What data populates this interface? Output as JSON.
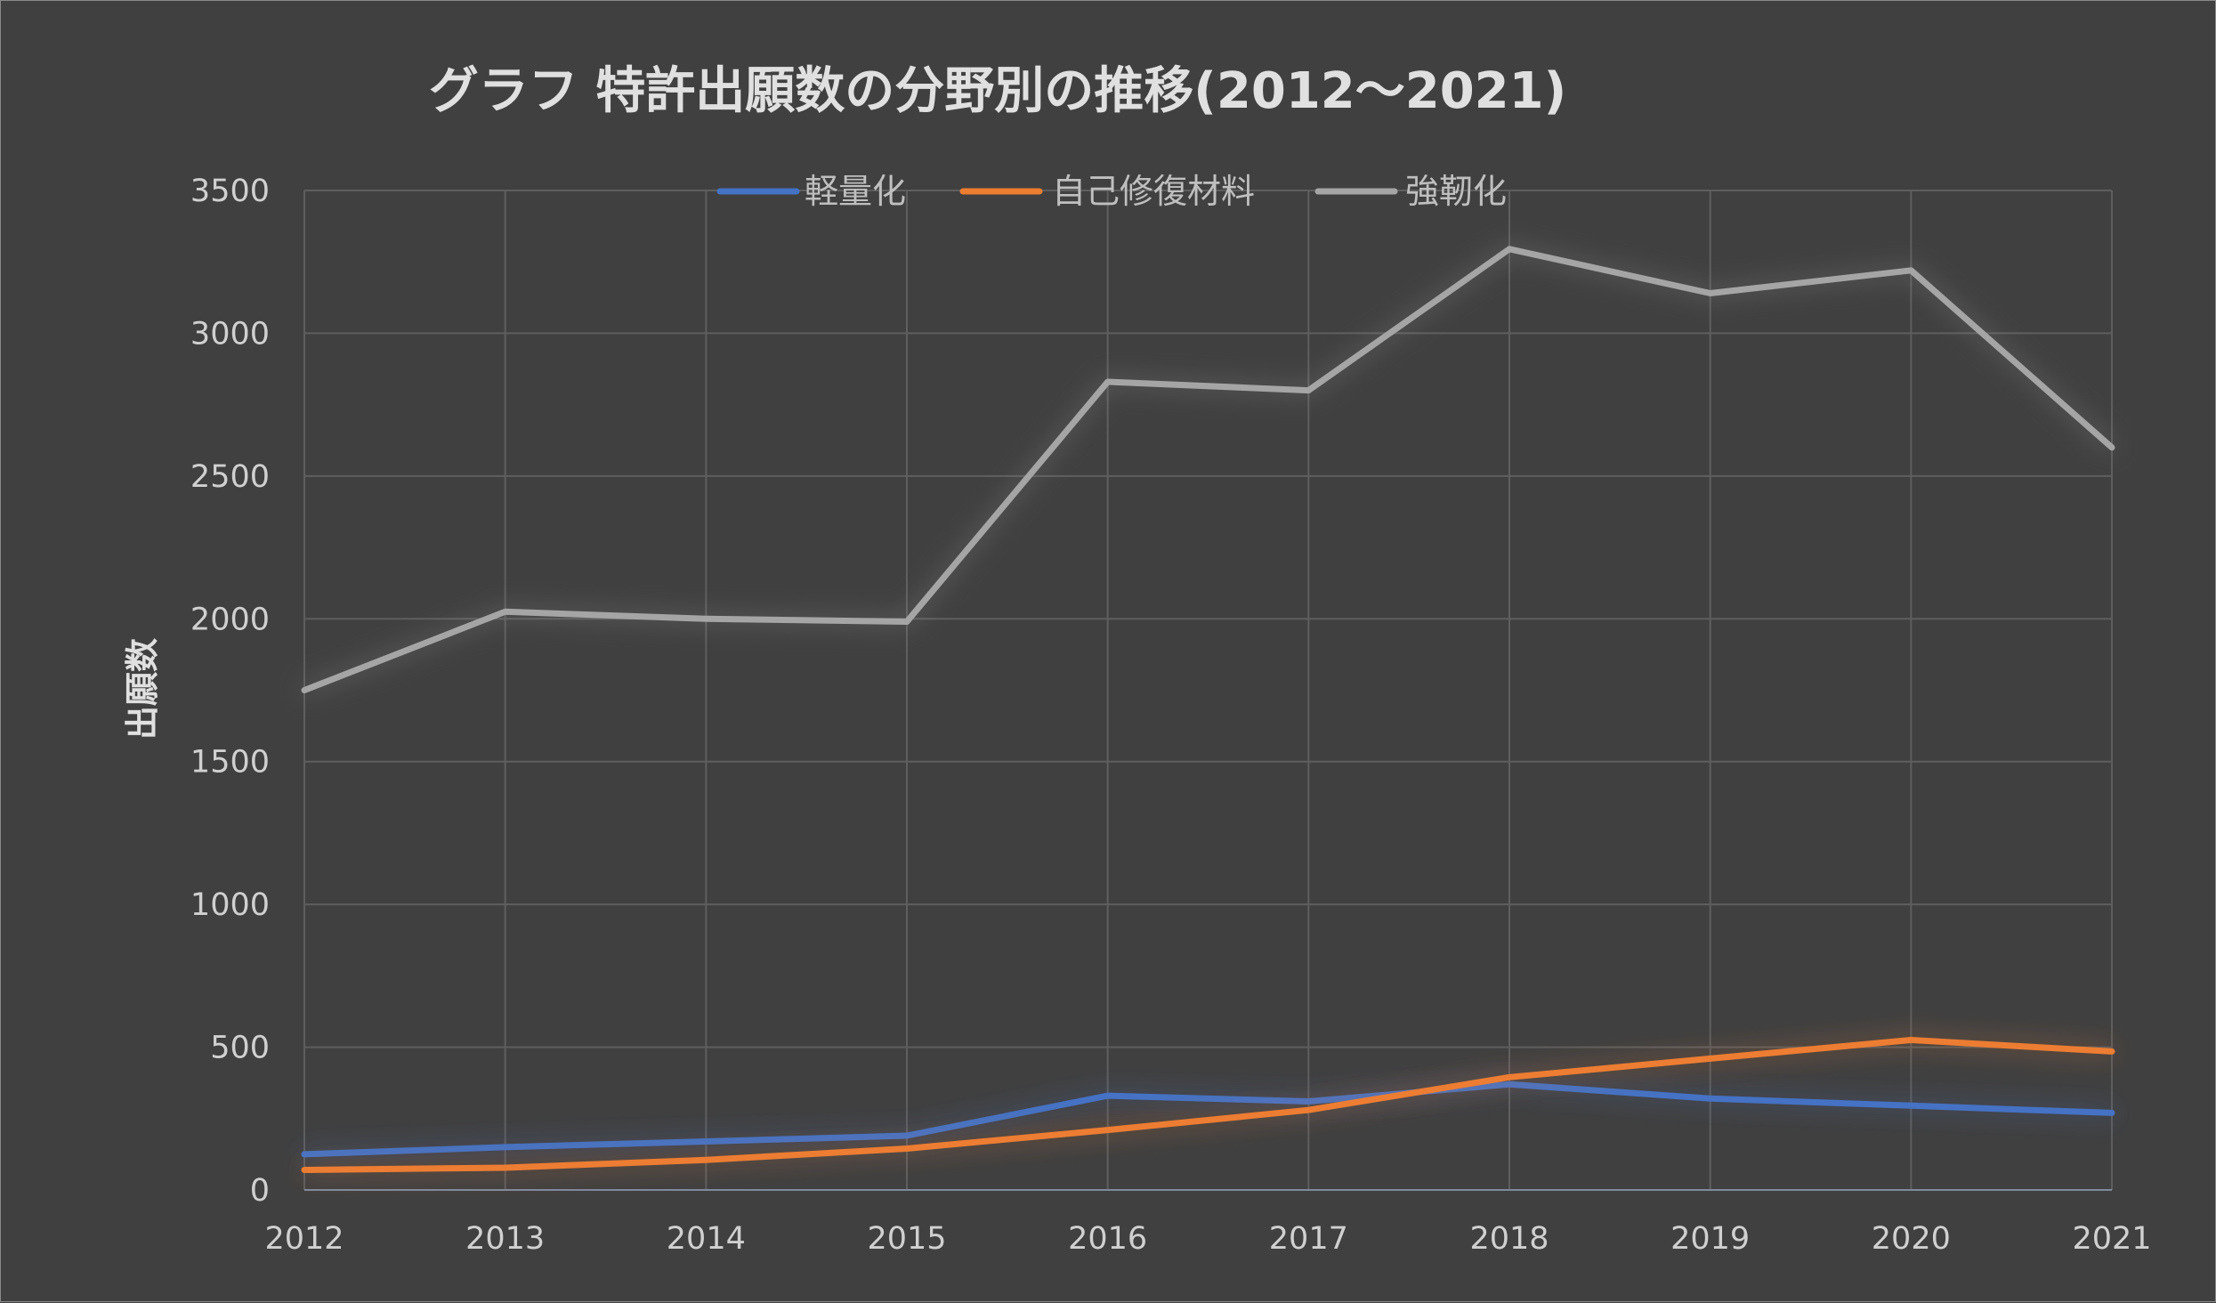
{
  "chart_data": {
    "type": "line",
    "title": "グラフ 特許出願数の分野別の推移(2012～2021)",
    "xlabel": "",
    "ylabel": "出願数",
    "ylim": [
      0,
      3500
    ],
    "yticks": [
      "0",
      "500",
      "1000",
      "1500",
      "2000",
      "2500",
      "3000",
      "3500"
    ],
    "categories": [
      "2012",
      "2013",
      "2014",
      "2015",
      "2016",
      "2017",
      "2018",
      "2019",
      "2020",
      "2021"
    ],
    "grid": true,
    "legend_position": "top",
    "series": [
      {
        "name": "軽量化",
        "color": "#4472c4",
        "values": [
          125,
          150,
          170,
          190,
          330,
          310,
          370,
          320,
          295,
          270
        ]
      },
      {
        "name": "自己修復材料",
        "color": "#ed7d31",
        "values": [
          70,
          78,
          105,
          145,
          210,
          280,
          395,
          460,
          525,
          485
        ]
      },
      {
        "name": "強靭化",
        "color": "#a5a5a5",
        "values": [
          1750,
          2025,
          2000,
          1990,
          2830,
          2800,
          3295,
          3140,
          3220,
          2600
        ]
      }
    ]
  }
}
